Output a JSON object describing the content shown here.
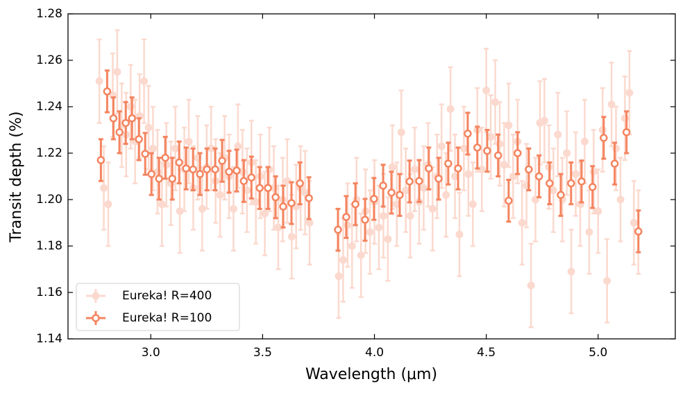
{
  "chart_data": {
    "type": "errorbar",
    "xlabel": "Wavelength (μm)",
    "ylabel": "Transit depth (%)",
    "xlim": [
      2.63,
      5.345
    ],
    "ylim": [
      1.14,
      1.28
    ],
    "xticks": [
      {
        "value": 3.0,
        "label": "3.0"
      },
      3.5,
      {
        "value": 4.0,
        "label": "4.0"
      },
      4.5,
      {
        "value": 5.0,
        "label": "5.0"
      }
    ],
    "yticks": [
      1.14,
      1.16,
      1.18,
      {
        "value": 1.2,
        "label": "1.20"
      },
      1.22,
      1.24,
      1.26,
      1.28
    ],
    "legend": "lower left",
    "series": [
      {
        "name": "Eureka! R=400",
        "color": "#f4845f",
        "alpha": 0.3,
        "marker": "filled",
        "yerr": 0.018,
        "xerr": 0.005,
        "x": [
          2.77,
          2.79,
          2.81,
          2.83,
          2.85,
          2.87,
          2.89,
          2.91,
          2.93,
          2.95,
          2.97,
          2.99,
          3.01,
          3.03,
          3.05,
          3.07,
          3.09,
          3.11,
          3.13,
          3.15,
          3.17,
          3.19,
          3.21,
          3.23,
          3.25,
          3.27,
          3.29,
          3.31,
          3.33,
          3.35,
          3.37,
          3.39,
          3.41,
          3.43,
          3.45,
          3.47,
          3.49,
          3.51,
          3.53,
          3.55,
          3.57,
          3.59,
          3.61,
          3.63,
          3.65,
          3.67,
          3.69,
          3.71,
          3.84,
          3.86,
          3.88,
          3.9,
          3.92,
          3.94,
          3.96,
          3.98,
          4.0,
          4.02,
          4.04,
          4.06,
          4.08,
          4.1,
          4.12,
          4.14,
          4.16,
          4.18,
          4.2,
          4.22,
          4.24,
          4.26,
          4.28,
          4.3,
          4.32,
          4.34,
          4.36,
          4.38,
          4.4,
          4.42,
          4.44,
          4.46,
          4.48,
          4.5,
          4.52,
          4.54,
          4.56,
          4.58,
          4.6,
          4.62,
          4.64,
          4.66,
          4.68,
          4.7,
          4.72,
          4.74,
          4.76,
          4.78,
          4.8,
          4.82,
          4.84,
          4.86,
          4.88,
          4.9,
          4.92,
          4.94,
          4.96,
          4.98,
          5.0,
          5.02,
          5.04,
          5.06,
          5.08,
          5.1,
          5.12,
          5.14,
          5.16,
          5.18
        ],
        "values": [
          1.251,
          1.205,
          1.198,
          1.245,
          1.255,
          1.232,
          1.228,
          1.24,
          1.225,
          1.236,
          1.251,
          1.231,
          1.222,
          1.212,
          1.198,
          1.215,
          1.207,
          1.222,
          1.195,
          1.213,
          1.225,
          1.205,
          1.218,
          1.196,
          1.214,
          1.222,
          1.208,
          1.202,
          1.218,
          1.21,
          1.196,
          1.223,
          1.212,
          1.204,
          1.216,
          1.199,
          1.21,
          1.194,
          1.213,
          1.205,
          1.188,
          1.2,
          1.208,
          1.184,
          1.197,
          1.205,
          1.203,
          1.19,
          1.167,
          1.174,
          1.189,
          1.18,
          1.2,
          1.176,
          1.195,
          1.186,
          1.199,
          1.188,
          1.193,
          1.183,
          1.214,
          1.198,
          1.229,
          1.204,
          1.193,
          1.213,
          1.199,
          1.205,
          1.215,
          1.196,
          1.21,
          1.223,
          1.202,
          1.239,
          1.21,
          1.185,
          1.222,
          1.211,
          1.198,
          1.23,
          1.213,
          1.247,
          1.227,
          1.242,
          1.224,
          1.215,
          1.232,
          1.21,
          1.225,
          1.19,
          1.206,
          1.163,
          1.2,
          1.233,
          1.234,
          1.214,
          1.204,
          1.228,
          1.2,
          1.22,
          1.169,
          1.211,
          1.198,
          1.225,
          1.186,
          1.212,
          1.195,
          1.23,
          1.165,
          1.241,
          1.222,
          1.2,
          1.235,
          1.246,
          1.19,
          1.186
        ]
      },
      {
        "name": "Eureka! R=100",
        "color": "#f4845f",
        "alpha": 1,
        "marker": "open",
        "yerr": 0.009,
        "xerr": 0.016,
        "x": [
          2.777,
          2.805,
          2.833,
          2.86,
          2.888,
          2.916,
          2.947,
          2.975,
          3.003,
          3.037,
          3.065,
          3.096,
          3.127,
          3.158,
          3.189,
          3.22,
          3.251,
          3.288,
          3.319,
          3.35,
          3.384,
          3.416,
          3.45,
          3.487,
          3.524,
          3.558,
          3.592,
          3.629,
          3.667,
          3.707,
          3.837,
          3.874,
          3.915,
          3.958,
          3.998,
          4.039,
          4.076,
          4.113,
          4.157,
          4.2,
          4.243,
          4.287,
          4.33,
          4.374,
          4.417,
          4.46,
          4.504,
          4.553,
          4.6,
          4.64,
          4.69,
          4.736,
          4.783,
          4.833,
          4.879,
          4.926,
          4.975,
          5.025,
          5.074,
          5.127,
          5.18
        ],
        "values": [
          1.217,
          1.2466,
          1.235,
          1.229,
          1.233,
          1.235,
          1.226,
          1.2197,
          1.211,
          1.209,
          1.218,
          1.209,
          1.216,
          1.2134,
          1.213,
          1.211,
          1.213,
          1.213,
          1.2167,
          1.212,
          1.2125,
          1.208,
          1.2095,
          1.205,
          1.205,
          1.201,
          1.197,
          1.1985,
          1.207,
          1.2006,
          1.187,
          1.1925,
          1.198,
          1.1913,
          1.2003,
          1.206,
          1.203,
          1.202,
          1.2078,
          1.208,
          1.2134,
          1.209,
          1.2155,
          1.2134,
          1.2284,
          1.2224,
          1.221,
          1.219,
          1.1995,
          1.22,
          1.213,
          1.21,
          1.207,
          1.202,
          1.207,
          1.2078,
          1.2054,
          1.2266,
          1.2155,
          1.229,
          1.1863
        ]
      }
    ]
  }
}
